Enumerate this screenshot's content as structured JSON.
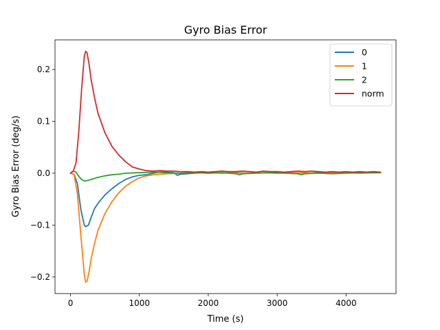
{
  "chart_data": {
    "type": "line",
    "title": "Gyro Bias Error",
    "xlabel": "Time (s)",
    "ylabel": "Gyro Bias Error (deg/s)",
    "xlim": [
      -225,
      4725
    ],
    "ylim": [
      -0.232,
      0.257
    ],
    "xticks": [
      0,
      1000,
      2000,
      3000,
      4000
    ],
    "yticks": [
      0.2,
      0.1,
      0.0,
      -0.1,
      -0.2
    ],
    "xtick_labels": [
      "0",
      "1000",
      "2000",
      "3000",
      "4000"
    ],
    "ytick_labels": [
      "0.2",
      "0.1",
      "0.0",
      "−0.1",
      "−0.2"
    ],
    "grid": false,
    "legend_position": "top-right",
    "series": [
      {
        "name": "0",
        "color": "#1f77b4",
        "points": [
          [
            0,
            0
          ],
          [
            50,
            -0.002
          ],
          [
            100,
            -0.02
          ],
          [
            150,
            -0.07
          ],
          [
            200,
            -0.1
          ],
          [
            220,
            -0.103
          ],
          [
            260,
            -0.1
          ],
          [
            300,
            -0.085
          ],
          [
            350,
            -0.068
          ],
          [
            400,
            -0.058
          ],
          [
            500,
            -0.042
          ],
          [
            600,
            -0.03
          ],
          [
            700,
            -0.02
          ],
          [
            800,
            -0.012
          ],
          [
            900,
            -0.007
          ],
          [
            1000,
            -0.004
          ],
          [
            1100,
            -0.003
          ],
          [
            1200,
            0.0
          ],
          [
            1300,
            0.002
          ],
          [
            1400,
            0.002
          ],
          [
            1500,
            0.001
          ],
          [
            1550,
            -0.004
          ],
          [
            1600,
            -0.002
          ],
          [
            1700,
            -0.001
          ],
          [
            1800,
            0.0
          ],
          [
            2000,
            0.001
          ],
          [
            2200,
            0.0
          ],
          [
            2400,
            0.001
          ],
          [
            2600,
            0.0
          ],
          [
            2800,
            0.001
          ],
          [
            3000,
            0.0
          ],
          [
            3200,
            0.001
          ],
          [
            3400,
            0.0
          ],
          [
            3600,
            0.001
          ],
          [
            3800,
            0.0
          ],
          [
            4000,
            0.001
          ],
          [
            4200,
            0.0
          ],
          [
            4250,
            0.0
          ]
        ]
      },
      {
        "name": "1",
        "color": "#ff7f0e",
        "points": [
          [
            0,
            0
          ],
          [
            50,
            -0.002
          ],
          [
            100,
            -0.04
          ],
          [
            150,
            -0.12
          ],
          [
            200,
            -0.195
          ],
          [
            220,
            -0.21
          ],
          [
            240,
            -0.208
          ],
          [
            270,
            -0.19
          ],
          [
            300,
            -0.165
          ],
          [
            350,
            -0.135
          ],
          [
            400,
            -0.11
          ],
          [
            500,
            -0.078
          ],
          [
            600,
            -0.055
          ],
          [
            700,
            -0.038
          ],
          [
            800,
            -0.025
          ],
          [
            900,
            -0.016
          ],
          [
            1000,
            -0.009
          ],
          [
            1100,
            -0.005
          ],
          [
            1200,
            -0.003
          ],
          [
            1300,
            -0.002
          ],
          [
            1400,
            -0.001
          ],
          [
            1600,
            0.0
          ],
          [
            1800,
            0.001
          ],
          [
            2000,
            0.0
          ],
          [
            2200,
            0.001
          ],
          [
            2500,
            0.0
          ],
          [
            2800,
            0.001
          ],
          [
            3000,
            0.0
          ],
          [
            3300,
            0.001
          ],
          [
            3600,
            0.0
          ],
          [
            3900,
            0.001
          ],
          [
            4200,
            0.0
          ],
          [
            4500,
            0.001
          ]
        ]
      },
      {
        "name": "2",
        "color": "#2ca02c",
        "points": [
          [
            0,
            0
          ],
          [
            40,
            0.004
          ],
          [
            80,
            0.002
          ],
          [
            120,
            -0.006
          ],
          [
            160,
            -0.012
          ],
          [
            200,
            -0.015
          ],
          [
            250,
            -0.014
          ],
          [
            300,
            -0.012
          ],
          [
            400,
            -0.008
          ],
          [
            500,
            -0.005
          ],
          [
            600,
            -0.003
          ],
          [
            700,
            -0.002
          ],
          [
            800,
            0.0
          ],
          [
            1000,
            0.001
          ],
          [
            1200,
            0.002
          ],
          [
            1400,
            0.001
          ],
          [
            1600,
            0.0
          ],
          [
            1800,
            0.001
          ],
          [
            2000,
            0.0
          ],
          [
            2200,
            0.001
          ],
          [
            2400,
            -0.001
          ],
          [
            2450,
            -0.003
          ],
          [
            2500,
            -0.001
          ],
          [
            2700,
            0.0
          ],
          [
            2900,
            0.001
          ],
          [
            3100,
            0.0
          ],
          [
            3300,
            -0.001
          ],
          [
            3350,
            -0.003
          ],
          [
            3400,
            -0.001
          ],
          [
            3600,
            0.0
          ],
          [
            3800,
            -0.001
          ],
          [
            4000,
            0.0
          ],
          [
            4200,
            0.001
          ],
          [
            4500,
            0.001
          ]
        ]
      },
      {
        "name": "norm",
        "color": "#d62728",
        "points": [
          [
            0,
            0
          ],
          [
            40,
            0.004
          ],
          [
            80,
            0.02
          ],
          [
            120,
            0.08
          ],
          [
            160,
            0.16
          ],
          [
            200,
            0.225
          ],
          [
            220,
            0.235
          ],
          [
            240,
            0.232
          ],
          [
            270,
            0.21
          ],
          [
            300,
            0.18
          ],
          [
            350,
            0.145
          ],
          [
            400,
            0.115
          ],
          [
            500,
            0.078
          ],
          [
            600,
            0.052
          ],
          [
            700,
            0.035
          ],
          [
            800,
            0.022
          ],
          [
            900,
            0.012
          ],
          [
            1000,
            0.008
          ],
          [
            1100,
            0.005
          ],
          [
            1200,
            0.004
          ],
          [
            1300,
            0.005
          ],
          [
            1400,
            0.004
          ],
          [
            1500,
            0.004
          ],
          [
            1600,
            0.003
          ],
          [
            1700,
            0.003
          ],
          [
            1800,
            0.002
          ],
          [
            1900,
            0.003
          ],
          [
            2000,
            0.002
          ],
          [
            2100,
            0.003
          ],
          [
            2200,
            0.004
          ],
          [
            2300,
            0.003
          ],
          [
            2400,
            0.003
          ],
          [
            2500,
            0.004
          ],
          [
            2600,
            0.003
          ],
          [
            2700,
            0.002
          ],
          [
            2800,
            0.004
          ],
          [
            2900,
            0.003
          ],
          [
            3000,
            0.003
          ],
          [
            3100,
            0.002
          ],
          [
            3200,
            0.003
          ],
          [
            3300,
            0.004
          ],
          [
            3400,
            0.003
          ],
          [
            3500,
            0.004
          ],
          [
            3600,
            0.003
          ],
          [
            3700,
            0.002
          ],
          [
            3800,
            0.003
          ],
          [
            3900,
            0.002
          ],
          [
            4000,
            0.003
          ],
          [
            4100,
            0.002
          ],
          [
            4200,
            0.003
          ],
          [
            4300,
            0.002
          ],
          [
            4400,
            0.003
          ],
          [
            4500,
            0.002
          ]
        ]
      }
    ]
  }
}
